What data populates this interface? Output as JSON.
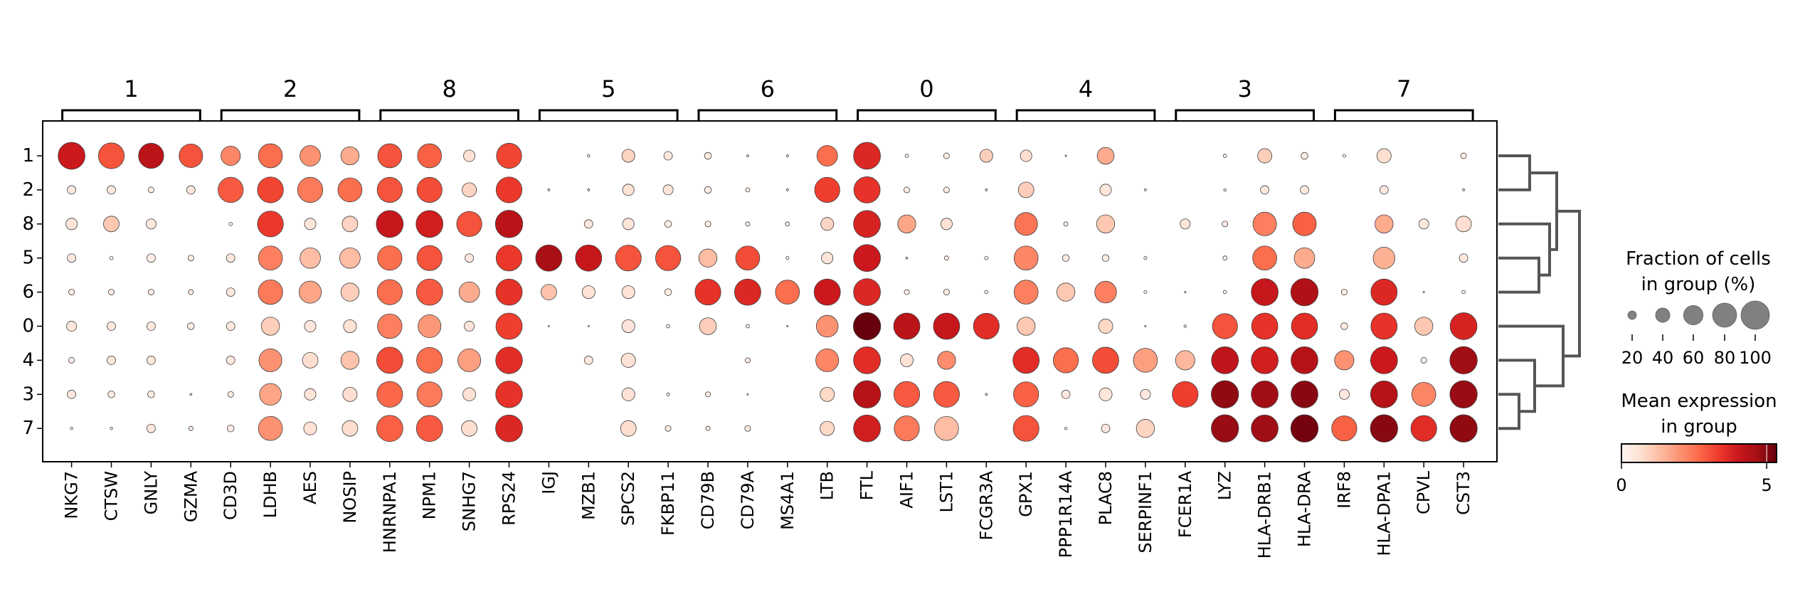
{
  "chart_data": {
    "type": "dotplot",
    "groups": [
      "1",
      "2",
      "8",
      "5",
      "6",
      "0",
      "4",
      "3",
      "7"
    ],
    "var_groups": [
      {
        "label": "1",
        "genes": [
          "NKG7",
          "CTSW",
          "GNLY",
          "GZMA"
        ]
      },
      {
        "label": "2",
        "genes": [
          "CD3D",
          "LDHB",
          "AES",
          "NOSIP"
        ]
      },
      {
        "label": "8",
        "genes": [
          "HNRNPA1",
          "NPM1",
          "SNHG7",
          "RPS24"
        ]
      },
      {
        "label": "5",
        "genes": [
          "IGJ",
          "MZB1",
          "SPCS2",
          "FKBP11"
        ]
      },
      {
        "label": "6",
        "genes": [
          "CD79B",
          "CD79A",
          "MS4A1",
          "LTB"
        ]
      },
      {
        "label": "0",
        "genes": [
          "FTL",
          "AIF1",
          "LST1",
          "FCGR3A"
        ]
      },
      {
        "label": "4",
        "genes": [
          "GPX1",
          "PPP1R14A",
          "PLAC8",
          "SERPINF1"
        ]
      },
      {
        "label": "3",
        "genes": [
          "FCER1A",
          "LYZ",
          "HLA-DRB1",
          "HLA-DRA"
        ]
      },
      {
        "label": "7",
        "genes": [
          "IRF8",
          "HLA-DPA1",
          "CPVL",
          "CST3"
        ]
      }
    ],
    "genes": [
      "NKG7",
      "CTSW",
      "GNLY",
      "GZMA",
      "CD3D",
      "LDHB",
      "AES",
      "NOSIP",
      "HNRNPA1",
      "NPM1",
      "SNHG7",
      "RPS24",
      "IGJ",
      "MZB1",
      "SPCS2",
      "FKBP11",
      "CD79B",
      "CD79A",
      "MS4A1",
      "LTB",
      "FTL",
      "AIF1",
      "LST1",
      "FCGR3A",
      "GPX1",
      "PPP1R14A",
      "PLAC8",
      "SERPINF1",
      "FCER1A",
      "LYZ",
      "HLA-DRB1",
      "HLA-DRA",
      "IRF8",
      "HLA-DPA1",
      "CPVL",
      "CST3"
    ],
    "fraction_pct": [
      [
        93,
        88,
        85,
        78,
        60,
        80,
        65,
        55,
        80,
        80,
        30,
        85,
        0,
        4,
        35,
        20,
        15,
        3,
        3,
        65,
        93,
        6,
        12,
        35,
        30,
        2,
        50,
        0,
        0,
        6,
        40,
        15,
        5,
        40,
        0,
        12
      ],
      [
        20,
        20,
        12,
        20,
        85,
        88,
        85,
        80,
        85,
        85,
        40,
        88,
        3,
        3,
        30,
        25,
        15,
        8,
        3,
        85,
        90,
        12,
        12,
        3,
        45,
        0,
        30,
        3,
        0,
        4,
        20,
        20,
        0,
        20,
        0,
        3
      ],
      [
        30,
        45,
        25,
        0,
        6,
        88,
        30,
        45,
        93,
        93,
        85,
        95,
        0,
        20,
        30,
        15,
        12,
        8,
        8,
        35,
        93,
        55,
        30,
        0,
        75,
        8,
        55,
        0,
        25,
        12,
        78,
        78,
        0,
        55,
        25,
        45
      ],
      [
        20,
        6,
        20,
        12,
        20,
        80,
        65,
        65,
        82,
        85,
        20,
        88,
        90,
        90,
        88,
        85,
        55,
        80,
        5,
        30,
        93,
        3,
        8,
        6,
        80,
        15,
        15,
        5,
        0,
        8,
        80,
        65,
        0,
        70,
        0,
        20
      ],
      [
        12,
        12,
        12,
        10,
        20,
        82,
        72,
        55,
        85,
        90,
        65,
        90,
        45,
        35,
        35,
        15,
        88,
        90,
        80,
        90,
        93,
        10,
        12,
        6,
        80,
        55,
        70,
        5,
        2,
        6,
        93,
        95,
        12,
        90,
        2,
        6
      ],
      [
        25,
        20,
        20,
        15,
        20,
        55,
        30,
        35,
        82,
        75,
        25,
        90,
        1,
        1,
        35,
        6,
        50,
        6,
        2,
        70,
        95,
        90,
        90,
        88,
        55,
        0,
        40,
        2,
        4,
        85,
        90,
        90,
        15,
        90,
        55,
        93
      ],
      [
        12,
        20,
        20,
        0,
        20,
        75,
        45,
        55,
        90,
        88,
        75,
        92,
        0,
        20,
        40,
        0,
        0,
        10,
        0,
        75,
        93,
        35,
        55,
        0,
        90,
        85,
        90,
        80,
        60,
        93,
        93,
        93,
        60,
        93,
        12,
        95
      ],
      [
        20,
        15,
        15,
        3,
        12,
        70,
        30,
        40,
        88,
        85,
        35,
        92,
        0,
        0,
        35,
        5,
        10,
        1,
        0,
        40,
        95,
        88,
        88,
        3,
        85,
        20,
        35,
        25,
        88,
        95,
        93,
        93,
        25,
        93,
        80,
        95
      ],
      [
        4,
        4,
        20,
        8,
        15,
        80,
        35,
        45,
        90,
        90,
        45,
        93,
        0,
        0,
        45,
        12,
        8,
        12,
        0,
        40,
        93,
        85,
        80,
        0,
        88,
        4,
        20,
        55,
        0,
        95,
        93,
        95,
        85,
        95,
        88,
        95
      ]
    ],
    "mean_expression": [
      [
        4.0,
        3.0,
        4.3,
        3.0,
        2.2,
        2.6,
        2.0,
        1.6,
        3.0,
        2.8,
        0.6,
        3.2,
        0,
        0.1,
        0.9,
        0.4,
        0.3,
        0.1,
        0.1,
        2.6,
        3.7,
        0.2,
        0.3,
        1.0,
        0.7,
        0.1,
        1.6,
        0,
        0,
        0.2,
        1.0,
        0.3,
        0.1,
        0.7,
        0,
        0.3
      ],
      [
        0.4,
        0.4,
        0.3,
        0.5,
        2.9,
        3.2,
        2.4,
        2.6,
        3.0,
        3.1,
        0.9,
        3.4,
        0.1,
        0.1,
        0.6,
        0.5,
        0.3,
        0.2,
        0.1,
        3.3,
        3.5,
        0.3,
        0.3,
        0.1,
        1.0,
        0,
        0.5,
        0.1,
        0,
        0.1,
        0.4,
        0.4,
        0,
        0.4,
        0,
        0.1
      ],
      [
        0.5,
        1.1,
        0.4,
        0,
        0.2,
        3.4,
        0.5,
        0.9,
        4.1,
        3.9,
        3.0,
        4.3,
        0,
        0.4,
        0.5,
        0.3,
        0.3,
        0.2,
        0.2,
        0.9,
        3.8,
        1.7,
        0.6,
        0,
        2.5,
        0.2,
        1.1,
        0,
        0.5,
        0.3,
        2.3,
        2.8,
        0,
        1.6,
        0.4,
        0.7
      ],
      [
        0.4,
        0.2,
        0.3,
        0.3,
        0.4,
        2.3,
        1.3,
        1.3,
        2.6,
        3.0,
        0.4,
        3.4,
        4.6,
        4.1,
        3.0,
        3.0,
        1.3,
        3.1,
        0.1,
        0.5,
        4.0,
        0.1,
        0.2,
        0.2,
        2.2,
        0.3,
        0.3,
        0.1,
        0,
        0.2,
        2.6,
        1.6,
        0,
        1.5,
        0,
        0.4
      ],
      [
        0.3,
        0.3,
        0.3,
        0.3,
        0.4,
        2.4,
        1.7,
        1.0,
        2.6,
        2.9,
        1.6,
        3.5,
        1.2,
        0.6,
        0.6,
        0.3,
        3.5,
        3.7,
        2.6,
        4.0,
        3.7,
        0.2,
        0.3,
        0.2,
        2.3,
        1.1,
        2.3,
        0.1,
        0.1,
        0.2,
        4.1,
        4.5,
        0.3,
        3.7,
        0.1,
        0.2
      ],
      [
        0.4,
        0.4,
        0.4,
        0.3,
        0.4,
        1.0,
        0.5,
        0.6,
        2.3,
        1.9,
        0.5,
        3.3,
        0.1,
        0.1,
        0.5,
        0.2,
        1.0,
        0.2,
        0.1,
        2.0,
        5.4,
        4.3,
        4.1,
        3.6,
        1.1,
        0,
        0.8,
        0.1,
        0.1,
        3.0,
        3.5,
        3.6,
        0.3,
        3.5,
        1.1,
        3.8
      ],
      [
        0.3,
        0.4,
        0.4,
        0,
        0.4,
        2.0,
        0.7,
        1.2,
        3.1,
        2.6,
        1.8,
        3.6,
        0,
        0.4,
        0.6,
        0,
        0,
        0.3,
        0,
        2.2,
        3.6,
        0.6,
        2.1,
        0,
        3.6,
        2.6,
        3.1,
        1.8,
        1.4,
        4.2,
        3.9,
        4.4,
        2.0,
        4.0,
        0.3,
        4.7
      ],
      [
        0.4,
        0.3,
        0.3,
        0.1,
        0.3,
        1.7,
        0.5,
        0.7,
        2.7,
        2.4,
        0.6,
        3.5,
        0,
        0,
        0.6,
        0.1,
        0.2,
        0.1,
        0,
        0.8,
        4.4,
        2.9,
        2.9,
        0.1,
        2.8,
        0.4,
        0.5,
        0.4,
        3.3,
        4.9,
        4.7,
        5.0,
        0.4,
        4.4,
        2.2,
        4.8
      ],
      [
        0.1,
        0.1,
        0.4,
        0.2,
        0.3,
        2.0,
        0.6,
        0.7,
        2.8,
        2.9,
        0.7,
        3.7,
        0,
        0,
        0.7,
        0.3,
        0.2,
        0.3,
        0,
        0.8,
        3.9,
        2.4,
        1.3,
        0,
        3.0,
        0.1,
        0.4,
        0.9,
        0,
        4.8,
        4.7,
        5.2,
        2.8,
        5.0,
        3.6,
        4.9
      ]
    ],
    "size_legend": {
      "title_line1": "Fraction of cells",
      "title_line2": "in group (%)",
      "values": [
        20,
        40,
        60,
        80,
        100
      ],
      "tick_labels": [
        "20",
        "40",
        "60",
        "80",
        "100"
      ],
      "dot_color": "#808080"
    },
    "color_legend": {
      "title_line1": "Mean expression",
      "title_line2": "in group",
      "colormap": "Reds",
      "range": [
        0,
        5.34
      ],
      "tick_labels": [
        "0",
        "5"
      ],
      "tick_values": [
        0,
        5
      ]
    },
    "dendrogram": true,
    "colors": {
      "dendrogram": "#555555",
      "dot_edge": "#404040"
    }
  }
}
